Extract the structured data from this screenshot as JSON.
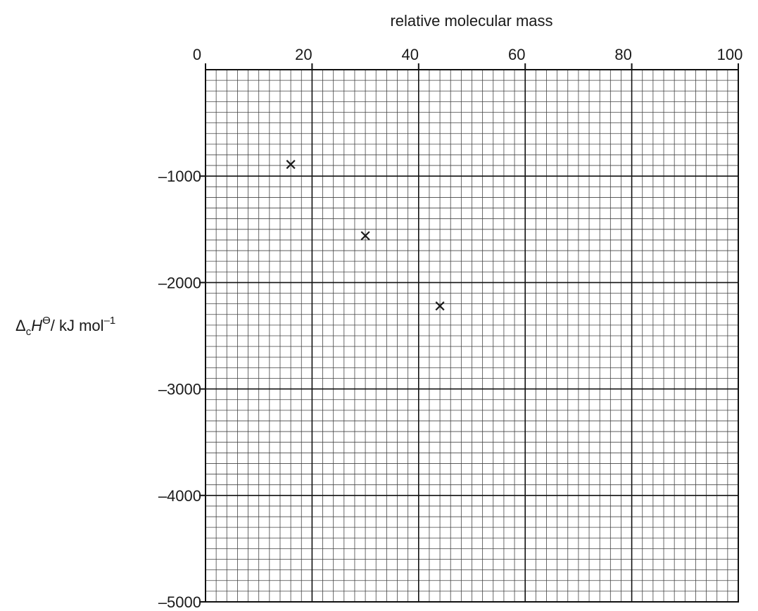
{
  "chart_data": {
    "type": "scatter",
    "title": "",
    "xlabel": "relative molecular mass",
    "ylabel": {
      "symbol": "Δ",
      "subscript": "c",
      "main": "H",
      "superscript": "ϴ",
      "unit": "/ kJ mol",
      "unit_exponent": "–1"
    },
    "xlim": [
      0,
      100
    ],
    "ylim": [
      -5000,
      0
    ],
    "x_major_ticks": [
      0,
      20,
      40,
      60,
      80,
      100
    ],
    "y_major_ticks": [
      -1000,
      -2000,
      -3000,
      -4000,
      -5000
    ],
    "x_tick_labels": [
      "0",
      "20",
      "40",
      "60",
      "80",
      "100"
    ],
    "y_tick_labels": [
      "–1000",
      "–2000",
      "–3000",
      "–4000",
      "–5000"
    ],
    "x_axis_position": "top",
    "grid": true,
    "grid_major_step": {
      "x": 20,
      "y": 1000
    },
    "grid_minor_step": {
      "x": 2,
      "y": 100
    },
    "marker": "x",
    "points": [
      {
        "x": 16,
        "y": -890
      },
      {
        "x": 30,
        "y": -1560
      },
      {
        "x": 44,
        "y": -2220
      }
    ]
  }
}
